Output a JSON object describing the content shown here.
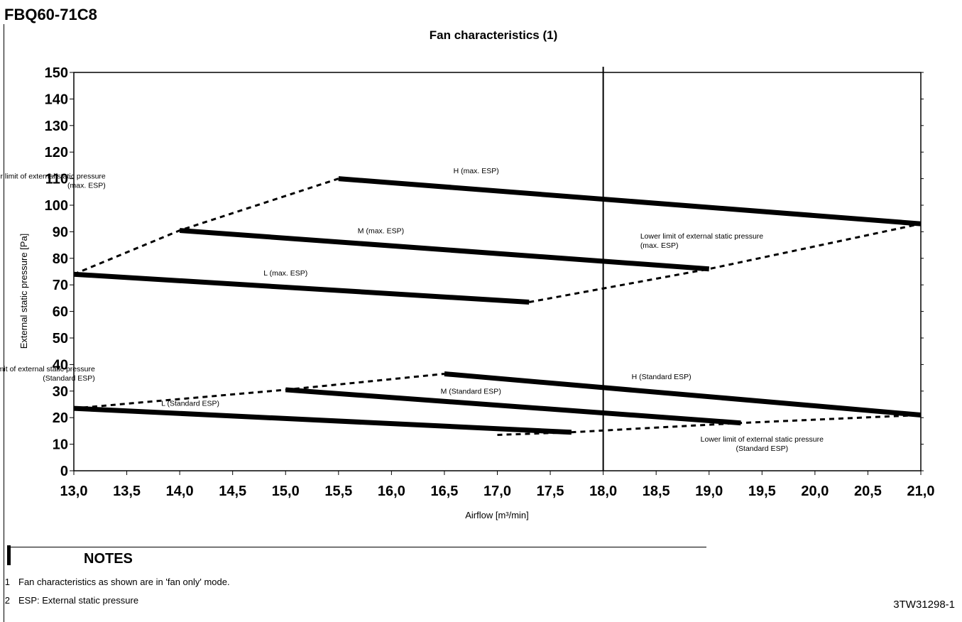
{
  "model": "FBQ60-71C8",
  "notes": {
    "title": "NOTES",
    "items": [
      {
        "num": "1",
        "text": "Fan characteristics as shown are in 'fan only' mode."
      },
      {
        "num": "2",
        "text": "ESP: External static pressure"
      }
    ]
  },
  "doc_ref": "3TW31298-1",
  "chart_data": {
    "type": "line",
    "title": "Fan characteristics (1)",
    "xlabel": "Airflow [m³/min]",
    "ylabel": "External static pressure [Pa]",
    "xlim": [
      13.0,
      21.0
    ],
    "ylim": [
      0,
      150
    ],
    "x_ticks": [
      13.0,
      13.5,
      14.0,
      14.5,
      15.0,
      15.5,
      16.0,
      16.5,
      17.0,
      17.5,
      18.0,
      18.5,
      19.0,
      19.5,
      20.0,
      20.5,
      21.0
    ],
    "x_tick_labels": [
      "13,0",
      "13,5",
      "14,0",
      "14,5",
      "15,0",
      "15,5",
      "16,0",
      "16,5",
      "17,0",
      "17,5",
      "18,0",
      "18,5",
      "19,0",
      "19,5",
      "20,0",
      "20,5",
      "21,0"
    ],
    "y_ticks": [
      0,
      10,
      20,
      30,
      40,
      50,
      60,
      70,
      80,
      90,
      100,
      110,
      120,
      130,
      140,
      150
    ],
    "reference_line_x": 18.0,
    "series": [
      {
        "name": "H (max. ESP)",
        "style": "solid",
        "x": [
          15.5,
          21.0
        ],
        "y": [
          110,
          93
        ]
      },
      {
        "name": "M (max. ESP)",
        "style": "solid",
        "x": [
          14.0,
          19.0
        ],
        "y": [
          90.5,
          76
        ]
      },
      {
        "name": "L (max. ESP)",
        "style": "solid",
        "x": [
          13.0,
          17.3
        ],
        "y": [
          74,
          63.5
        ]
      },
      {
        "name": "H (Standard ESP)",
        "style": "solid",
        "x": [
          16.5,
          21.0
        ],
        "y": [
          36.5,
          21
        ]
      },
      {
        "name": "M (Standard ESP)",
        "style": "solid",
        "x": [
          15.0,
          19.3
        ],
        "y": [
          30.5,
          18
        ]
      },
      {
        "name": "L (Standard ESP)",
        "style": "solid",
        "x": [
          13.0,
          17.7
        ],
        "y": [
          23.5,
          14.5
        ]
      },
      {
        "name": "Upper limit of external static pressure (max. ESP)",
        "style": "dashed",
        "x": [
          13.0,
          14.0,
          15.5
        ],
        "y": [
          74,
          90.5,
          110
        ]
      },
      {
        "name": "Lower limit of external static pressure (max. ESP)",
        "style": "dashed",
        "x": [
          17.3,
          19.0,
          21.0
        ],
        "y": [
          63.5,
          76,
          93
        ]
      },
      {
        "name": "Upper limit of external static pressure (Standard ESP)",
        "style": "dashed",
        "x": [
          13.0,
          15.0,
          16.5
        ],
        "y": [
          23.5,
          30.5,
          36.5
        ]
      },
      {
        "name": "Lower limit of external static pressure (Standard ESP)",
        "style": "dashed",
        "x": [
          17.0,
          17.7,
          19.3,
          21.0
        ],
        "y": [
          13.5,
          14.5,
          18,
          21
        ]
      }
    ],
    "annotations": [
      {
        "text": "H (max. ESP)",
        "x": 16.8,
        "y": 112
      },
      {
        "text": "M (max. ESP)",
        "x": 15.9,
        "y": 89.5
      },
      {
        "text": "L (max. ESP)",
        "x": 15.0,
        "y": 73.5
      },
      {
        "lines": [
          "Upper limit of external static pressure",
          "(max. ESP)"
        ],
        "x": 13.3,
        "y": 110,
        "align": "end"
      },
      {
        "lines": [
          "Lower limit of external static pressure",
          "(max. ESP)"
        ],
        "x": 18.35,
        "y": 87.5,
        "align": "start"
      },
      {
        "lines": [
          "Upper limit of external static pressure",
          "(Standard ESP)"
        ],
        "x": 13.2,
        "y": 37.5,
        "align": "end"
      },
      {
        "text": "H (Standard ESP)",
        "x": 18.55,
        "y": 34.5
      },
      {
        "text": "M (Standard ESP)",
        "x": 16.75,
        "y": 29
      },
      {
        "text": "L (Standard ESP)",
        "x": 14.1,
        "y": 24.5
      },
      {
        "lines": [
          "Lower limit of external static pressure",
          "(Standard ESP)"
        ],
        "x": 19.5,
        "y": 11,
        "align": "middle"
      }
    ]
  }
}
